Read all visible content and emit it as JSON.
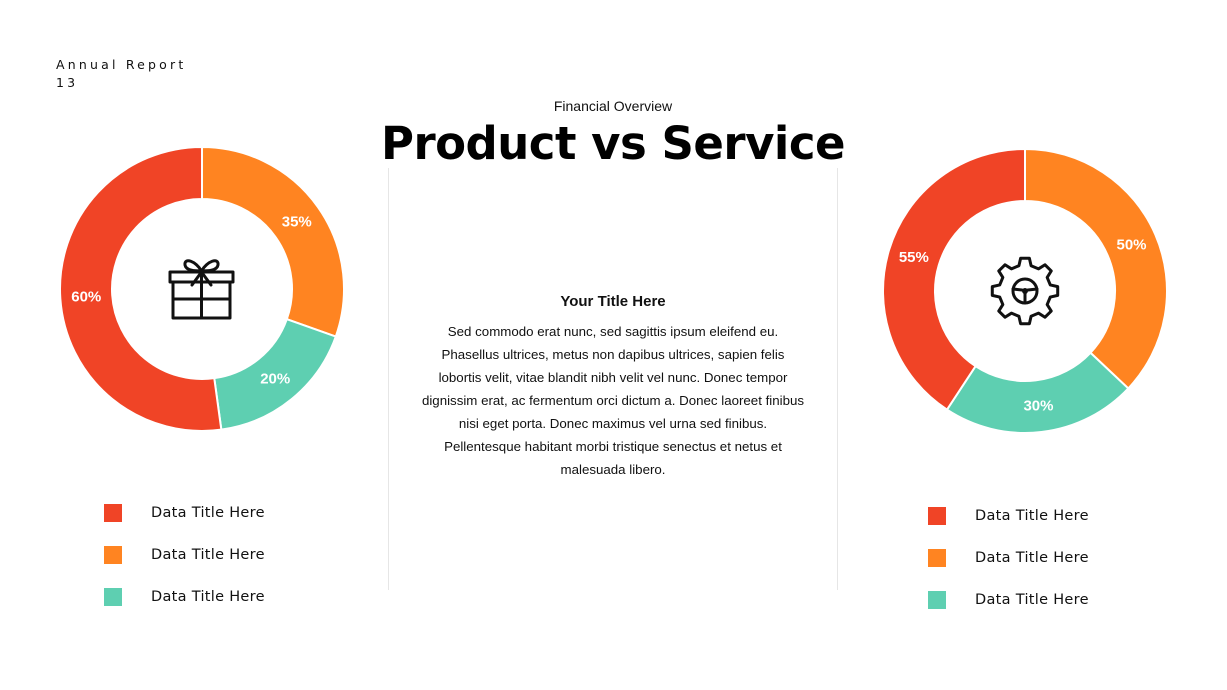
{
  "header": {
    "label": "Annual Report",
    "page_number": "13"
  },
  "slide": {
    "subtitle": "Financial Overview",
    "title": "Product vs Service"
  },
  "body": {
    "heading": "Your Title Here",
    "text": "Sed commodo erat nunc, sed sagittis ipsum eleifend eu. Phasellus ultrices, metus non dapibus ultrices, sapien felis lobortis velit, vitae blandit nibh velit vel nunc. Donec tempor dignissim erat, ac fermentum orci dictum a. Donec laoreet finibus nisi eget porta. Donec maximus vel urna sed finibus. Pellentesque habitant morbi tristique senectus et netus et malesuada libero."
  },
  "colors": {
    "red": "#F04426",
    "orange": "#FF8421",
    "teal": "#5ECFB1"
  },
  "chart_data": [
    {
      "type": "pie",
      "variant": "donut",
      "center_icon": "gift-icon",
      "title": "",
      "categories": [
        "Data Title Here",
        "Data Title Here",
        "Data Title Here"
      ],
      "values": [
        35,
        20,
        60
      ],
      "labels": [
        "35%",
        "20%",
        "60%"
      ],
      "colors": [
        "#FF8421",
        "#5ECFB1",
        "#F04426"
      ],
      "legend": {
        "placement": "bottom",
        "entries": [
          {
            "label": "Data Title Here",
            "color": "#F04426"
          },
          {
            "label": "Data Title Here",
            "color": "#FF8421"
          },
          {
            "label": "Data Title Here",
            "color": "#5ECFB1"
          }
        ]
      }
    },
    {
      "type": "pie",
      "variant": "donut",
      "center_icon": "gear-icon",
      "title": "",
      "categories": [
        "Data Title Here",
        "Data Title Here",
        "Data Title Here"
      ],
      "values": [
        50,
        30,
        55
      ],
      "labels": [
        "50%",
        "30%",
        "55%"
      ],
      "colors": [
        "#FF8421",
        "#5ECFB1",
        "#F04426"
      ],
      "legend": {
        "placement": "bottom",
        "entries": [
          {
            "label": "Data Title Here",
            "color": "#F04426"
          },
          {
            "label": "Data Title Here",
            "color": "#FF8421"
          },
          {
            "label": "Data Title Here",
            "color": "#5ECFB1"
          }
        ]
      }
    }
  ]
}
